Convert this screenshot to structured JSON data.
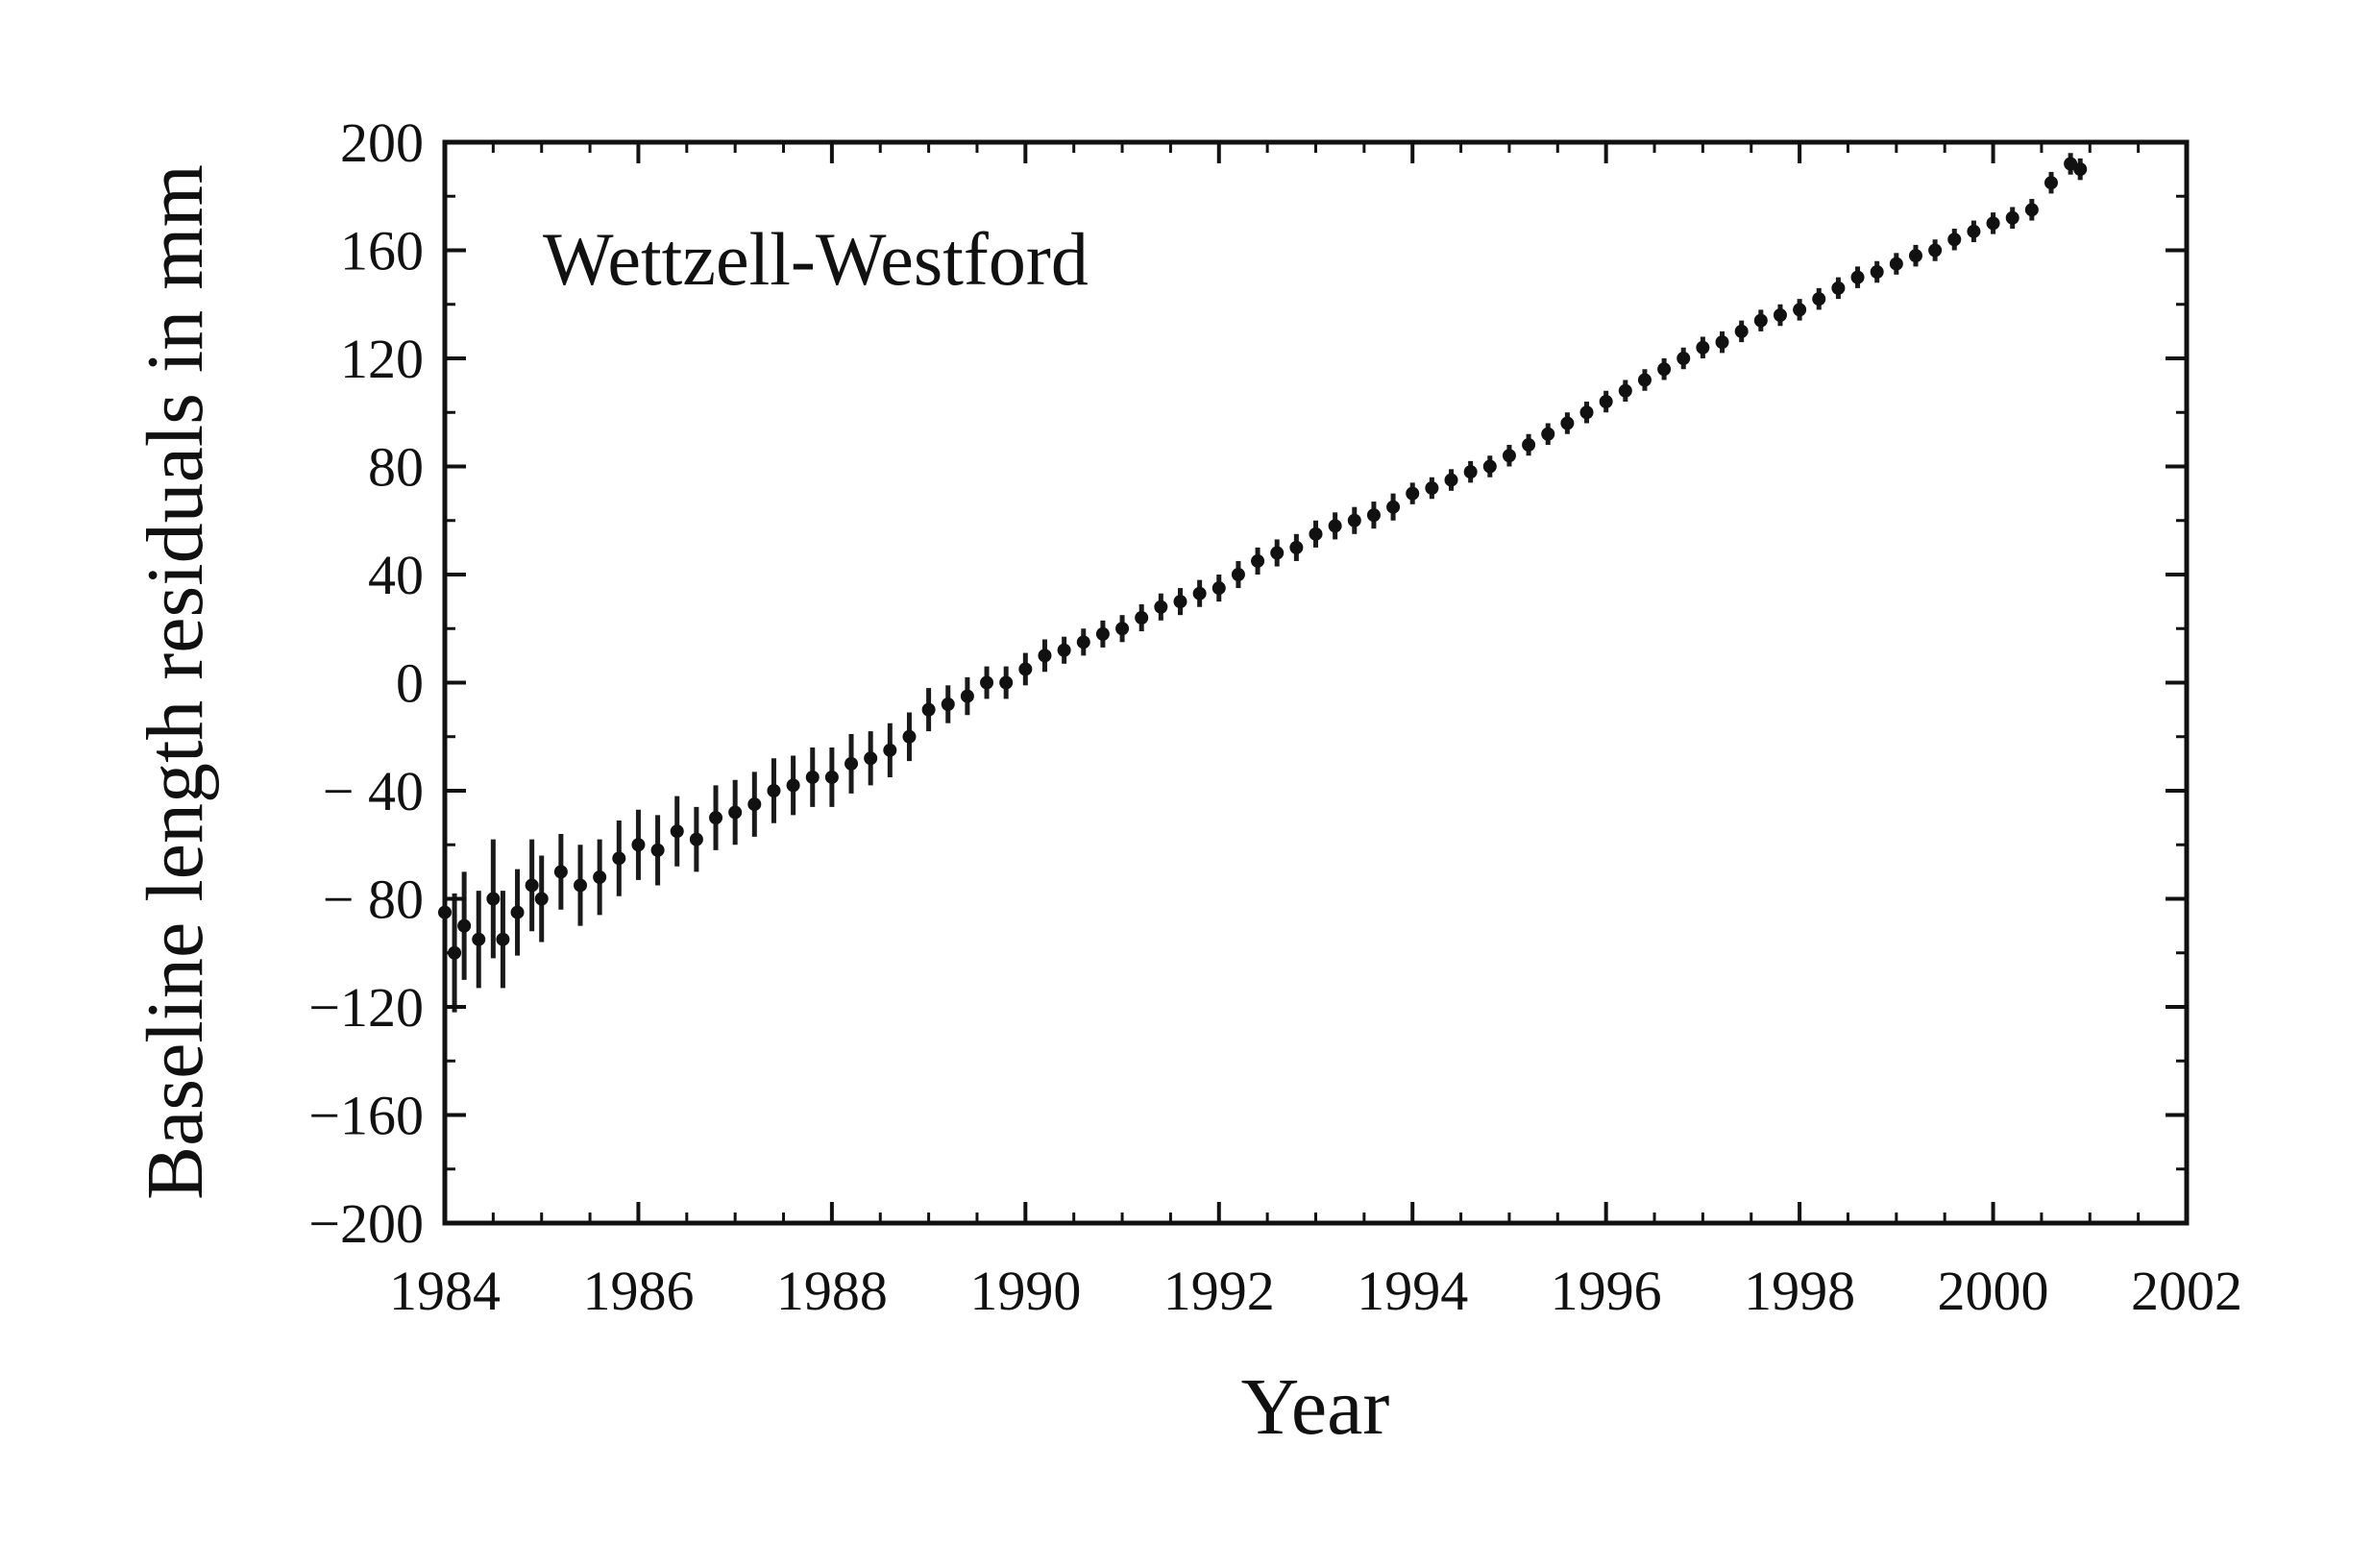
{
  "chart_data": {
    "type": "scatter",
    "title": "",
    "annotation": "Wettzell-Westford",
    "xlabel": "Year",
    "ylabel": "Baseline length residuals in mm",
    "xlim": [
      1984,
      2002
    ],
    "ylim": [
      -200,
      200
    ],
    "x_ticks": [
      1984,
      1986,
      1988,
      1990,
      1992,
      1994,
      1996,
      1998,
      2000,
      2002
    ],
    "x_tick_labels": [
      "1984",
      "1986",
      "1988",
      "1990",
      "1992",
      "1994",
      "1996",
      "1998",
      "2000",
      "2002"
    ],
    "y_ticks": [
      200,
      160,
      120,
      80,
      40,
      0,
      -40,
      -80,
      -120,
      -160,
      -200
    ],
    "y_tick_labels": [
      "200",
      "160",
      "120",
      "80",
      "40",
      "0",
      "− 40",
      "− 80",
      "−120",
      "−160",
      "−200"
    ],
    "grid": false,
    "series": [
      {
        "x": [
          1984.0,
          1984.1,
          1984.2,
          1984.35,
          1984.5,
          1984.6,
          1984.75,
          1984.9,
          1985.0,
          1985.2,
          1985.4,
          1985.6,
          1985.8,
          1986.0,
          1986.2,
          1986.4,
          1986.6,
          1986.8,
          1987.0,
          1987.2,
          1987.4,
          1987.6,
          1987.8,
          1988.0,
          1988.2,
          1988.4,
          1988.6,
          1988.8,
          1989.0,
          1989.2,
          1989.4,
          1989.6,
          1989.8,
          1990.0,
          1990.2,
          1990.4,
          1990.6,
          1990.8,
          1991.0,
          1991.2,
          1991.4,
          1991.6,
          1991.8,
          1992.0,
          1992.2,
          1992.4,
          1992.6,
          1992.8,
          1993.0,
          1993.2,
          1993.4,
          1993.6,
          1993.8,
          1994.0,
          1994.2,
          1994.4,
          1994.6,
          1994.8,
          1995.0,
          1995.2,
          1995.4,
          1995.6,
          1995.8,
          1996.0,
          1996.2,
          1996.4,
          1996.6,
          1996.8,
          1997.0,
          1997.2,
          1997.4,
          1997.6,
          1997.8,
          1998.0,
          1998.2,
          1998.4,
          1998.6,
          1998.8,
          1999.0,
          1999.2,
          1999.4,
          1999.6,
          1999.8,
          2000.0,
          2000.2,
          2000.4,
          2000.6,
          2000.8,
          2000.9
        ],
        "y": [
          -85,
          -100,
          -90,
          -95,
          -80,
          -95,
          -85,
          -75,
          -80,
          -70,
          -75,
          -72,
          -65,
          -60,
          -62,
          -55,
          -58,
          -50,
          -48,
          -45,
          -40,
          -38,
          -35,
          -35,
          -30,
          -28,
          -25,
          -20,
          -10,
          -8,
          -5,
          0,
          0,
          5,
          10,
          12,
          15,
          18,
          20,
          24,
          28,
          30,
          33,
          35,
          40,
          45,
          48,
          50,
          55,
          58,
          60,
          62,
          65,
          70,
          72,
          75,
          78,
          80,
          84,
          88,
          92,
          96,
          100,
          104,
          108,
          112,
          116,
          120,
          124,
          126,
          130,
          134,
          136,
          138,
          142,
          146,
          150,
          152,
          155,
          158,
          160,
          164,
          167,
          170,
          172,
          175,
          185,
          192,
          190
        ],
        "error": [
          18,
          22,
          20,
          18,
          22,
          18,
          16,
          17,
          16,
          14,
          15,
          14,
          14,
          13,
          13,
          13,
          12,
          12,
          12,
          12,
          12,
          11,
          11,
          11,
          11,
          10,
          10,
          9,
          8,
          7,
          7,
          6,
          6,
          6,
          6,
          5,
          5,
          5,
          5,
          5,
          5,
          5,
          5,
          5,
          5,
          5,
          5,
          5,
          5,
          5,
          5,
          5,
          5,
          4,
          4,
          4,
          4,
          4,
          4,
          4,
          4,
          4,
          4,
          4,
          4,
          4,
          4,
          4,
          4,
          4,
          4,
          4,
          4,
          4,
          4,
          4,
          4,
          4,
          4,
          4,
          4,
          4,
          4,
          4,
          4,
          4,
          4,
          4,
          4
        ]
      }
    ]
  }
}
